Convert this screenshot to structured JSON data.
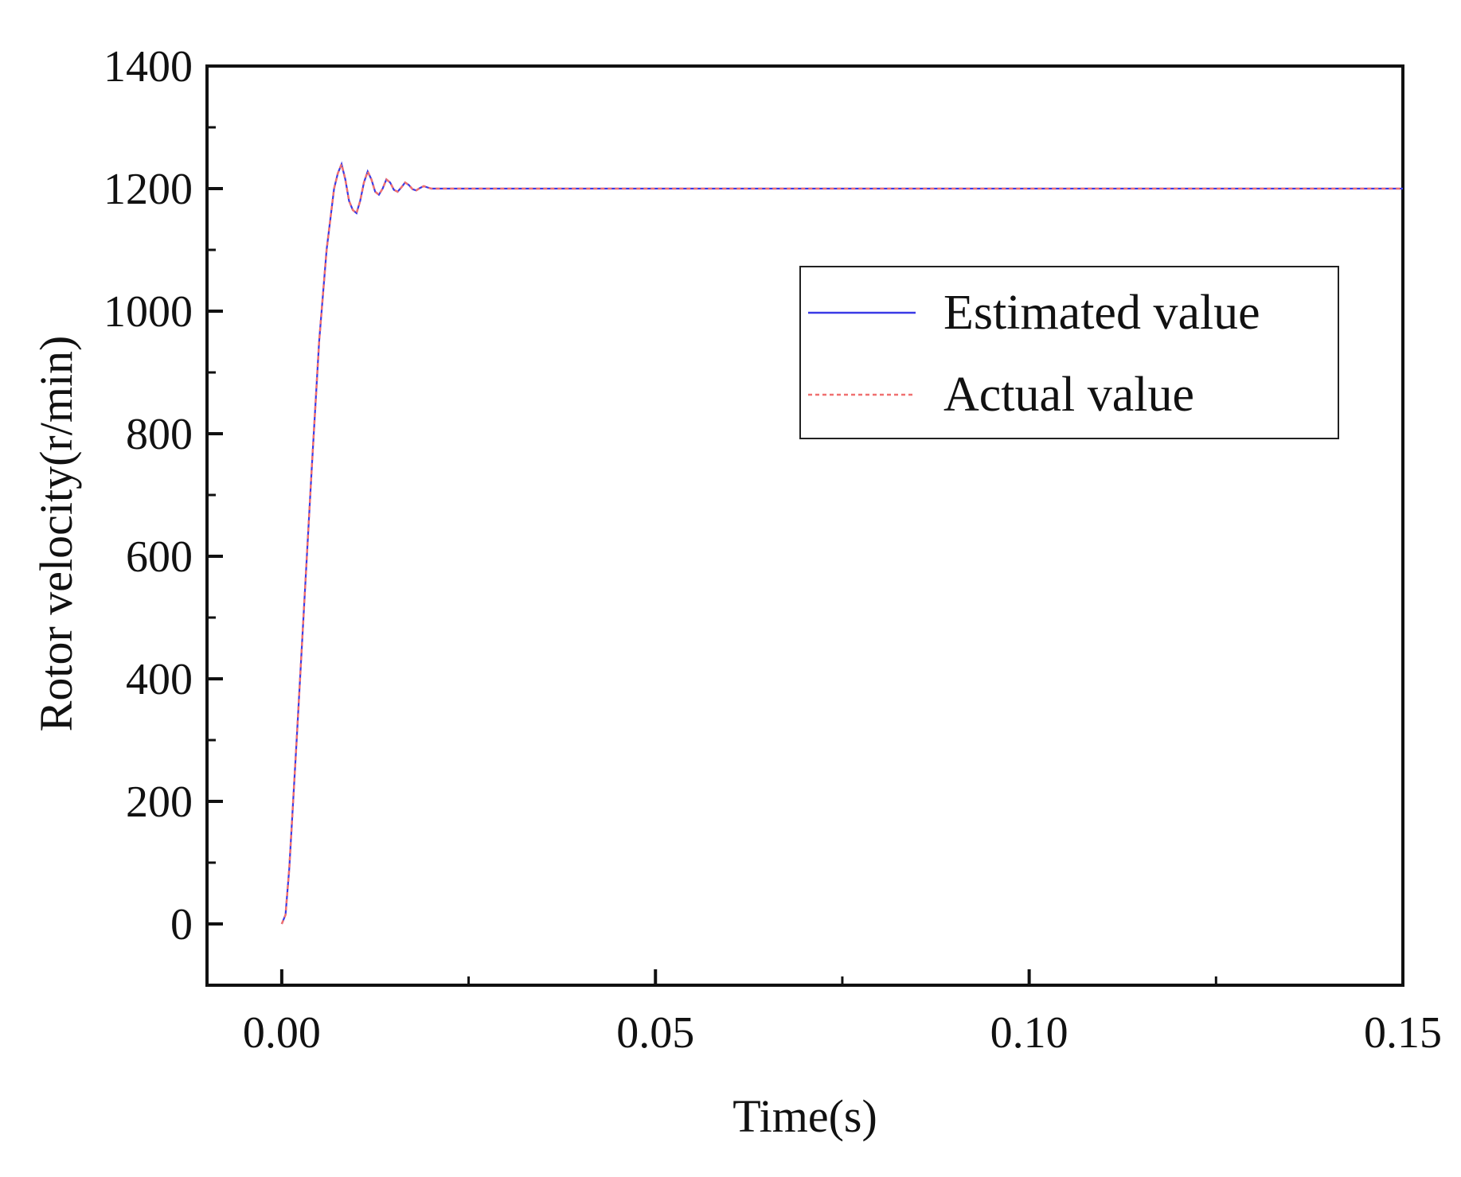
{
  "chart_data": {
    "type": "line",
    "xlabel": "Time(s)",
    "ylabel": "Rotor velocity(r/min)",
    "xlim": [
      -0.01,
      0.15
    ],
    "ylim": [
      -100,
      1400
    ],
    "xticks": [
      0.0,
      0.05,
      0.1,
      0.15
    ],
    "xtick_labels": [
      "0.00",
      "0.05",
      "0.10",
      "0.15"
    ],
    "yticks": [
      0,
      200,
      400,
      600,
      800,
      1000,
      1200,
      1400
    ],
    "ytick_labels": [
      "0",
      "200",
      "400",
      "600",
      "800",
      "1000",
      "1200",
      "1400"
    ],
    "grid": false,
    "legend_position": "right",
    "series": [
      {
        "name": "Estimated value",
        "color": "#3a3ae6",
        "style": "solid",
        "x": [
          0.0,
          0.0005,
          0.001,
          0.002,
          0.003,
          0.004,
          0.005,
          0.006,
          0.007,
          0.0075,
          0.008,
          0.0085,
          0.009,
          0.0095,
          0.01,
          0.0105,
          0.011,
          0.0115,
          0.012,
          0.0125,
          0.013,
          0.0135,
          0.014,
          0.0145,
          0.015,
          0.0155,
          0.016,
          0.0165,
          0.017,
          0.0175,
          0.018,
          0.0185,
          0.019,
          0.0195,
          0.02,
          0.025,
          0.03,
          0.05,
          0.075,
          0.1,
          0.125,
          0.15
        ],
        "y": [
          0,
          15,
          90,
          300,
          520,
          740,
          950,
          1100,
          1200,
          1225,
          1240,
          1215,
          1180,
          1165,
          1160,
          1180,
          1210,
          1228,
          1215,
          1195,
          1190,
          1200,
          1215,
          1210,
          1198,
          1195,
          1202,
          1210,
          1206,
          1199,
          1197,
          1201,
          1204,
          1202,
          1200,
          1200,
          1200,
          1200,
          1200,
          1200,
          1200,
          1200
        ]
      },
      {
        "name": "Actual value",
        "color": "#f07070",
        "style": "dotted",
        "x": [
          0.0,
          0.0005,
          0.001,
          0.002,
          0.003,
          0.004,
          0.005,
          0.006,
          0.007,
          0.0075,
          0.008,
          0.0085,
          0.009,
          0.0095,
          0.01,
          0.0105,
          0.011,
          0.0115,
          0.012,
          0.0125,
          0.013,
          0.0135,
          0.014,
          0.0145,
          0.015,
          0.0155,
          0.016,
          0.0165,
          0.017,
          0.0175,
          0.018,
          0.0185,
          0.019,
          0.0195,
          0.02,
          0.025,
          0.03,
          0.05,
          0.075,
          0.1,
          0.125,
          0.15
        ],
        "y": [
          0,
          15,
          90,
          300,
          520,
          740,
          950,
          1100,
          1200,
          1225,
          1240,
          1215,
          1180,
          1165,
          1160,
          1180,
          1210,
          1228,
          1215,
          1195,
          1190,
          1200,
          1215,
          1210,
          1198,
          1195,
          1202,
          1210,
          1206,
          1199,
          1197,
          1201,
          1204,
          1202,
          1200,
          1200,
          1200,
          1200,
          1200,
          1200,
          1200,
          1200
        ]
      }
    ]
  }
}
